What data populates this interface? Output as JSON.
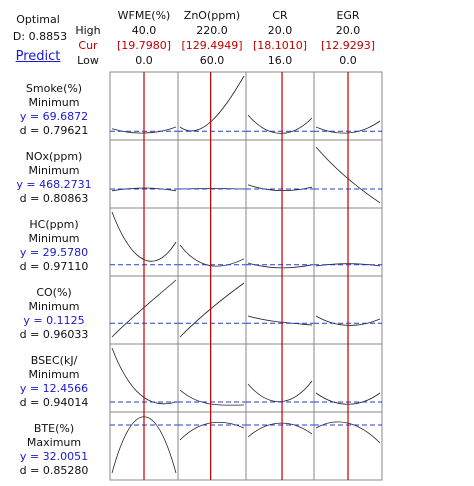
{
  "optimal": {
    "label": "Optimal",
    "d": "D: 0.8853",
    "predict": "Predict"
  },
  "setting_labels": {
    "high": "High",
    "cur": "Cur",
    "low": "Low"
  },
  "factors": [
    {
      "name": "WFME(%)",
      "high": "40.0",
      "cur": "[19.7980]",
      "low": "0.0"
    },
    {
      "name": "ZnO(ppm)",
      "high": "220.0",
      "cur": "[129.4949]",
      "low": "60.0"
    },
    {
      "name": "CR",
      "high": "20.0",
      "cur": "[18.1010]",
      "low": "16.0"
    },
    {
      "name": "EGR",
      "high": "20.0",
      "cur": "[12.9293]",
      "low": "0.0"
    }
  ],
  "responses": [
    {
      "name": "Smoke(%)",
      "goal": "Minimum",
      "y": "y = 69.6872",
      "d": "d = 0.79621"
    },
    {
      "name": "NOx(ppm)",
      "goal": "Minimum",
      "y": "y = 468.2731",
      "d": "d = 0.80863"
    },
    {
      "name": "HC(ppm)",
      "goal": "Minimum",
      "y": "y = 29.5780",
      "d": "d = 0.97110"
    },
    {
      "name": "CO(%)",
      "goal": "Minimum",
      "y": "y = 0.1125",
      "d": "d = 0.96033"
    },
    {
      "name": "BSEC(kJ/",
      "goal": "Minimum",
      "y": "y = 12.4566",
      "d": "d = 0.94014"
    },
    {
      "name": "BTE(%)",
      "goal": "Maximum",
      "y": "y = 32.0051",
      "d": "d = 0.85280"
    }
  ]
}
